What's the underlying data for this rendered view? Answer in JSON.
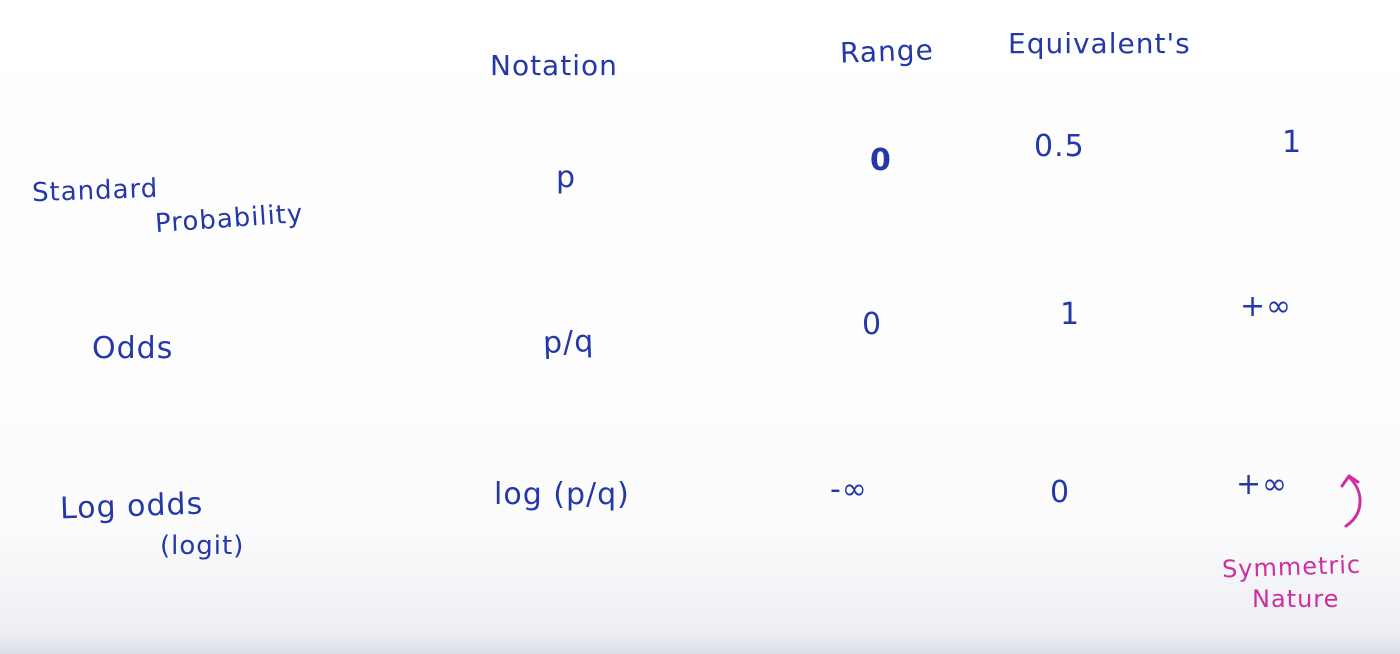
{
  "headers": {
    "notation": "Notation",
    "range": "Range",
    "equivalents": "Equivalent's"
  },
  "rows": [
    {
      "label_line1": "Standard",
      "label_line2": "Probability",
      "notation": "p",
      "values": [
        "0",
        "0.5",
        "1"
      ]
    },
    {
      "label_line1": "Odds",
      "label_line2": "",
      "notation": "p/q",
      "values": [
        "0",
        "1",
        "+∞"
      ]
    },
    {
      "label_line1": "Log odds",
      "label_line2": "(logit)",
      "notation": "log (p/q)",
      "values": [
        "-∞",
        "0",
        "+∞"
      ]
    }
  ],
  "annotation": {
    "line1": "Symmetric",
    "line2": "Nature",
    "color": "#cf2f9e"
  },
  "ink_color": "#2538a8"
}
